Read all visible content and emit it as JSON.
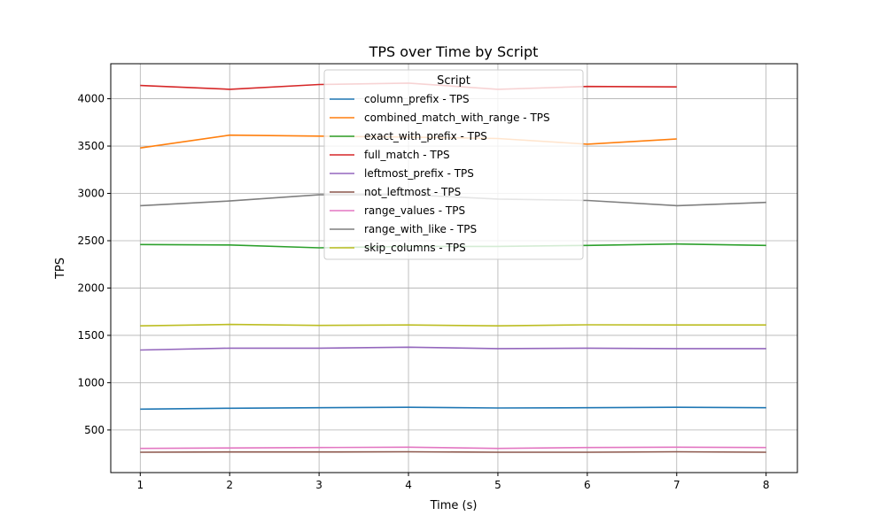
{
  "chart_data": {
    "type": "line",
    "title": "TPS over Time by Script",
    "xlabel": "Time (s)",
    "ylabel": "TPS",
    "xlim": [
      0.67,
      8.35
    ],
    "ylim": [
      50,
      4370
    ],
    "x": [
      1,
      2,
      3,
      4,
      5,
      6,
      7,
      8
    ],
    "xticks": [
      "1",
      "2",
      "3",
      "4",
      "5",
      "6",
      "7",
      "8"
    ],
    "yticks": [
      500,
      1000,
      1500,
      2000,
      2500,
      3000,
      3500,
      4000
    ],
    "grid": true,
    "legend": {
      "title": "Script",
      "placement": "upper-center"
    },
    "series": [
      {
        "name": "column_prefix - TPS",
        "color": "#1f77b4",
        "x": [
          1,
          2,
          3,
          4,
          5,
          6,
          7,
          8
        ],
        "values": [
          720,
          730,
          735,
          740,
          733,
          735,
          740,
          735
        ]
      },
      {
        "name": "combined_match_with_range - TPS",
        "color": "#ff7f0e",
        "x": [
          1,
          2,
          3,
          4,
          5,
          6,
          7
        ],
        "values": [
          3480,
          3615,
          3605,
          3595,
          3580,
          3520,
          3575
        ]
      },
      {
        "name": "exact_with_prefix - TPS",
        "color": "#2ca02c",
        "x": [
          1,
          2,
          3,
          4,
          5,
          6,
          7,
          8
        ],
        "values": [
          2460,
          2455,
          2425,
          2440,
          2440,
          2450,
          2465,
          2450
        ]
      },
      {
        "name": "full_match - TPS",
        "color": "#d62728",
        "x": [
          1,
          2,
          3,
          4,
          5,
          6,
          7
        ],
        "values": [
          4140,
          4100,
          4150,
          4165,
          4100,
          4130,
          4125
        ]
      },
      {
        "name": "leftmost_prefix - TPS",
        "color": "#9467bd",
        "x": [
          1,
          2,
          3,
          4,
          5,
          6,
          7,
          8
        ],
        "values": [
          1345,
          1365,
          1365,
          1375,
          1360,
          1365,
          1360,
          1360
        ]
      },
      {
        "name": "not_leftmost - TPS",
        "color": "#8c564b",
        "x": [
          1,
          2,
          3,
          4,
          5,
          6,
          7,
          8
        ],
        "values": [
          265,
          268,
          268,
          270,
          265,
          265,
          270,
          265
        ]
      },
      {
        "name": "range_values - TPS",
        "color": "#e377c2",
        "x": [
          1,
          2,
          3,
          4,
          5,
          6,
          7,
          8
        ],
        "values": [
          305,
          310,
          315,
          318,
          305,
          315,
          318,
          315
        ]
      },
      {
        "name": "range_with_like - TPS",
        "color": "#7f7f7f",
        "x": [
          1,
          2,
          3,
          4,
          5,
          6,
          7,
          8
        ],
        "values": [
          2870,
          2920,
          2985,
          2985,
          2940,
          2925,
          2870,
          2905
        ]
      },
      {
        "name": "skip_columns - TPS",
        "color": "#bcbd22",
        "x": [
          1,
          2,
          3,
          4,
          5,
          6,
          7,
          8
        ],
        "values": [
          1600,
          1615,
          1605,
          1610,
          1600,
          1612,
          1610,
          1610
        ]
      }
    ]
  }
}
